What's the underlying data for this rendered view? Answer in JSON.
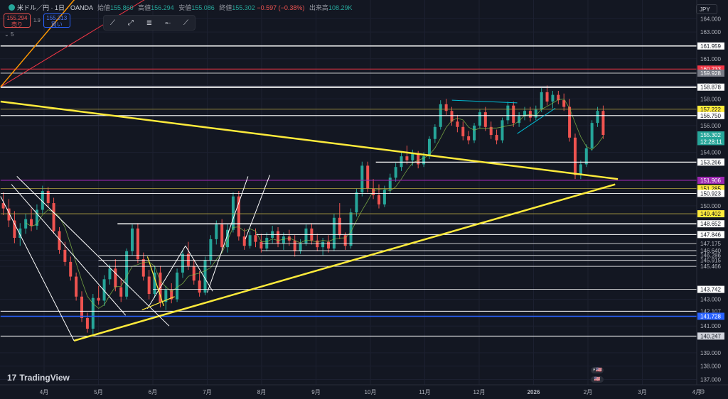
{
  "header": {
    "symbol": "米ドル／円 · 1日 · OANDA",
    "open_label": "始値",
    "open": "155.860",
    "high_label": "高値",
    "high": "156.294",
    "low_label": "安値",
    "low": "155.086",
    "close_label": "終値",
    "close": "155.302",
    "change": "−0.597 (−0.38%)",
    "volume_label": "出来高",
    "volume": "108.29K"
  },
  "trade": {
    "sell_price": "155.294",
    "sell_label": "売り",
    "spread": "1.9",
    "buy_price": "155.313",
    "buy_label": "買い"
  },
  "indicator_count": "5",
  "currency": "JPY",
  "brand": "TradingView",
  "chart_data": {
    "type": "candlestick",
    "ylim": [
      136.6,
      165.4
    ],
    "y_ticks": [
      "164.000",
      "163.000",
      "161.000",
      "159.000",
      "158.000",
      "156.000",
      "154.000",
      "150.000",
      "147.175",
      "146.640",
      "146.286",
      "145.915",
      "145.466",
      "143.000",
      "142.107",
      "141.000",
      "139.000",
      "138.000",
      "137.000"
    ],
    "x_ticks": [
      {
        "label": "4月",
        "month_index": 0
      },
      {
        "label": "5月",
        "month_index": 1
      },
      {
        "label": "6月",
        "month_index": 2
      },
      {
        "label": "7月",
        "month_index": 3
      },
      {
        "label": "8月",
        "month_index": 4
      },
      {
        "label": "9月",
        "month_index": 5
      },
      {
        "label": "10月",
        "month_index": 6
      },
      {
        "label": "11月",
        "month_index": 7
      },
      {
        "label": "12月",
        "month_index": 8
      },
      {
        "label": "2026",
        "month_index": 9
      },
      {
        "label": "2月",
        "month_index": 10
      },
      {
        "label": "3月",
        "month_index": 11
      },
      {
        "label": "4月",
        "month_index": 12
      }
    ],
    "price_labels": [
      {
        "value": "161.959",
        "price": 161.959,
        "bg": "#ffffff",
        "fg": "#131722"
      },
      {
        "value": "160.233",
        "price": 160.233,
        "bg": "#f23645",
        "fg": "#ffffff"
      },
      {
        "value": "159.928",
        "price": 159.928,
        "bg": "#787b86",
        "fg": "#ffffff"
      },
      {
        "value": "158.878",
        "price": 158.878,
        "bg": "#ffffff",
        "fg": "#131722"
      },
      {
        "value": "157.222",
        "price": 157.222,
        "bg": "#ffeb3b",
        "fg": "#131722"
      },
      {
        "value": "156.750",
        "price": 156.75,
        "bg": "#ffffff",
        "fg": "#131722"
      },
      {
        "value": "155.302",
        "price": 155.302,
        "bg": "#26a69a",
        "fg": "#ffffff"
      },
      {
        "value": "12:28:11",
        "price": 154.8,
        "bg": "#26a69a",
        "fg": "#ffffff"
      },
      {
        "value": "153.266",
        "price": 153.266,
        "bg": "#ffffff",
        "fg": "#131722"
      },
      {
        "value": "151.906",
        "price": 151.906,
        "bg": "#9c27b0",
        "fg": "#ffffff"
      },
      {
        "value": "151.285",
        "price": 151.285,
        "bg": "#ffeb3b",
        "fg": "#131722"
      },
      {
        "value": "150.923",
        "price": 150.923,
        "bg": "#ffffff",
        "fg": "#131722"
      },
      {
        "value": "149.402",
        "price": 149.402,
        "bg": "#ffeb3b",
        "fg": "#131722"
      },
      {
        "value": "148.652",
        "price": 148.652,
        "bg": "#ffffff",
        "fg": "#131722"
      },
      {
        "value": "147.846",
        "price": 147.846,
        "bg": "#ffffff",
        "fg": "#131722"
      },
      {
        "value": "143.742",
        "price": 143.742,
        "bg": "#ffffff",
        "fg": "#131722"
      },
      {
        "value": "141.728",
        "price": 141.728,
        "bg": "#2962ff",
        "fg": "#ffffff"
      },
      {
        "value": "140.247",
        "price": 140.247,
        "bg": "#d1d4dc",
        "fg": "#131722"
      }
    ],
    "h_lines": [
      {
        "price": 161.959,
        "from_month": -0.8,
        "color": "#ffffff",
        "width": 1.5
      },
      {
        "price": 160.233,
        "from_month": -0.8,
        "color": "#f23645",
        "width": 1
      },
      {
        "price": 159.928,
        "from_month": -0.8,
        "color": "#ffffff",
        "width": 0.8
      },
      {
        "price": 158.878,
        "from_month": -0.8,
        "color": "#ffffff",
        "width": 2
      },
      {
        "price": 157.222,
        "from_month": -0.8,
        "color": "#b5a642",
        "width": 0.8
      },
      {
        "price": 156.75,
        "from_month": -0.8,
        "color": "#ffffff",
        "width": 1.2
      },
      {
        "price": 153.266,
        "from_month": 6.1,
        "color": "#ffffff",
        "width": 1.2
      },
      {
        "price": 151.906,
        "from_month": -0.8,
        "color": "#9c27b0",
        "width": 1.2
      },
      {
        "price": 151.285,
        "from_month": -0.8,
        "color": "#b5a642",
        "width": 0.8
      },
      {
        "price": 150.923,
        "from_month": -0.8,
        "color": "#ffffff",
        "width": 0.8
      },
      {
        "price": 149.402,
        "from_month": -0.8,
        "color": "#b5a642",
        "width": 0.8
      },
      {
        "price": 148.652,
        "from_month": 1.35,
        "color": "#ffffff",
        "width": 1.5
      },
      {
        "price": 147.846,
        "from_month": 3.9,
        "color": "#ffffff",
        "width": 1
      },
      {
        "price": 147.175,
        "from_month": 4.0,
        "color": "#ffffff",
        "width": 0.8
      },
      {
        "price": 146.64,
        "from_month": 4.0,
        "color": "#ffffff",
        "width": 0.8
      },
      {
        "price": 146.286,
        "from_month": 1.0,
        "color": "#ffffff",
        "width": 0.8
      },
      {
        "price": 145.915,
        "from_month": 1.0,
        "color": "#ffffff",
        "width": 0.8
      },
      {
        "price": 145.466,
        "from_month": 1.0,
        "color": "#ffffff",
        "width": 0.8
      },
      {
        "price": 143.742,
        "from_month": 2.0,
        "color": "#ffffff",
        "width": 0.8
      },
      {
        "price": 142.107,
        "from_month": -0.8,
        "color": "#ffffff",
        "width": 1
      },
      {
        "price": 141.728,
        "from_month": -0.8,
        "color": "#2962ff",
        "width": 1.5
      },
      {
        "price": 140.247,
        "from_month": -0.8,
        "color": "#ffffff",
        "width": 1
      }
    ],
    "trend_lines": [
      {
        "x1": -0.8,
        "y1": 157.8,
        "x2": 10.55,
        "y2": 152.0,
        "color": "#ffeb3b",
        "width": 2.5
      },
      {
        "x1": 0.55,
        "y1": 139.9,
        "x2": 10.5,
        "y2": 151.6,
        "color": "#ffeb3b",
        "width": 2.5
      },
      {
        "x1": -0.8,
        "y1": 158.9,
        "x2": 3.3,
        "y2": 169.0,
        "color": "#f23645",
        "width": 1
      },
      {
        "x1": -0.8,
        "y1": 158.9,
        "x2": 1.3,
        "y2": 169.0,
        "color": "#ff9800",
        "width": 1.5
      },
      {
        "x1": -0.5,
        "y1": 152.2,
        "x2": 2.3,
        "y2": 141.0,
        "color": "#ffffff",
        "width": 1
      },
      {
        "x1": -0.6,
        "y1": 151.6,
        "x2": 1.5,
        "y2": 141.8,
        "color": "#ffffff",
        "width": 1
      },
      {
        "x1": -0.8,
        "y1": 150.7,
        "x2": 0.55,
        "y2": 139.9,
        "color": "#ffffff",
        "width": 1
      },
      {
        "x1": 1.9,
        "y1": 142.3,
        "x2": 2.6,
        "y2": 147.0,
        "color": "#ffffff",
        "width": 1
      },
      {
        "x1": 2.6,
        "y1": 147.0,
        "x2": 3.1,
        "y2": 143.6,
        "color": "#ffffff",
        "width": 1
      },
      {
        "x1": 3.0,
        "y1": 143.5,
        "x2": 3.75,
        "y2": 152.2,
        "color": "#ffffff",
        "width": 1
      },
      {
        "x1": 3.7,
        "y1": 147.5,
        "x2": 4.15,
        "y2": 152.3,
        "color": "#ffffff",
        "width": 1
      },
      {
        "x1": 1.8,
        "y1": 142.2,
        "x2": 2.4,
        "y2": 143.2,
        "color": "#ffeb3b",
        "width": 1.2
      },
      {
        "x1": 1.9,
        "y1": 146.2,
        "x2": 2.2,
        "y2": 142.5,
        "color": "#ffeb3b",
        "width": 1.2
      },
      {
        "x1": 7.5,
        "y1": 157.9,
        "x2": 8.7,
        "y2": 157.7,
        "color": "#00bcd4",
        "width": 1
      },
      {
        "x1": 8.7,
        "y1": 155.4,
        "x2": 9.4,
        "y2": 157.3,
        "color": "#00bcd4",
        "width": 1
      }
    ],
    "candles": [
      [
        150.2,
        151.0,
        149.3,
        149.8
      ],
      [
        149.8,
        150.5,
        148.4,
        148.9
      ],
      [
        148.9,
        149.6,
        147.2,
        147.6
      ],
      [
        147.6,
        148.7,
        147.0,
        148.3
      ],
      [
        148.3,
        149.4,
        147.9,
        149.0
      ],
      [
        149.0,
        149.8,
        148.1,
        148.5
      ],
      [
        148.5,
        150.1,
        148.2,
        149.7
      ],
      [
        149.7,
        151.5,
        149.4,
        151.1
      ],
      [
        151.1,
        151.4,
        149.9,
        150.2
      ],
      [
        150.2,
        150.6,
        147.9,
        148.1
      ],
      [
        148.1,
        148.4,
        146.4,
        146.7
      ],
      [
        146.7,
        147.3,
        145.5,
        145.8
      ],
      [
        145.8,
        146.2,
        144.4,
        144.7
      ],
      [
        144.7,
        145.0,
        142.9,
        143.2
      ],
      [
        143.2,
        143.6,
        141.3,
        141.6
      ],
      [
        141.6,
        142.0,
        140.5,
        140.8
      ],
      [
        140.8,
        143.4,
        140.4,
        143.1
      ],
      [
        143.1,
        144.0,
        142.6,
        142.9
      ],
      [
        142.9,
        144.8,
        142.5,
        144.5
      ],
      [
        144.5,
        145.6,
        144.1,
        145.3
      ],
      [
        145.3,
        146.0,
        143.6,
        143.9
      ],
      [
        143.9,
        144.6,
        142.8,
        143.2
      ],
      [
        143.2,
        146.8,
        143.0,
        146.6
      ],
      [
        146.6,
        148.6,
        146.3,
        148.3
      ],
      [
        148.3,
        148.7,
        145.7,
        146.0
      ],
      [
        146.0,
        146.5,
        144.4,
        144.7
      ],
      [
        144.7,
        145.2,
        143.0,
        143.4
      ],
      [
        143.4,
        145.5,
        143.1,
        145.0
      ],
      [
        145.0,
        145.5,
        142.4,
        142.8
      ],
      [
        142.8,
        144.0,
        142.2,
        143.7
      ],
      [
        143.7,
        144.2,
        142.7,
        143.0
      ],
      [
        143.0,
        145.3,
        142.8,
        145.0
      ],
      [
        145.0,
        146.7,
        144.6,
        146.4
      ],
      [
        146.4,
        147.3,
        145.2,
        145.5
      ],
      [
        145.5,
        146.0,
        144.1,
        144.4
      ],
      [
        144.4,
        145.1,
        143.2,
        143.5
      ],
      [
        143.5,
        146.2,
        143.3,
        145.9
      ],
      [
        145.9,
        147.8,
        145.6,
        147.5
      ],
      [
        147.5,
        148.9,
        147.1,
        148.6
      ],
      [
        148.6,
        149.0,
        146.6,
        146.9
      ],
      [
        146.9,
        148.6,
        146.5,
        148.2
      ],
      [
        148.2,
        151.0,
        148.0,
        150.7
      ],
      [
        150.7,
        151.1,
        147.4,
        147.7
      ],
      [
        147.7,
        148.3,
        146.7,
        147.0
      ],
      [
        147.0,
        148.1,
        146.8,
        147.8
      ],
      [
        147.8,
        148.3,
        146.9,
        147.3
      ],
      [
        147.3,
        147.9,
        146.5,
        146.8
      ],
      [
        146.8,
        148.0,
        146.6,
        147.6
      ],
      [
        147.6,
        148.5,
        147.2,
        148.1
      ],
      [
        148.1,
        148.4,
        146.9,
        147.2
      ],
      [
        147.2,
        148.0,
        146.7,
        147.7
      ],
      [
        147.7,
        148.2,
        147.0,
        147.4
      ],
      [
        147.4,
        147.8,
        146.2,
        146.6
      ],
      [
        146.6,
        147.5,
        146.4,
        147.2
      ],
      [
        147.2,
        148.6,
        147.0,
        148.3
      ],
      [
        148.3,
        148.7,
        147.1,
        147.4
      ],
      [
        147.4,
        147.9,
        146.6,
        146.9
      ],
      [
        146.9,
        147.6,
        146.3,
        147.3
      ],
      [
        147.3,
        147.8,
        146.5,
        146.8
      ],
      [
        146.8,
        149.4,
        146.6,
        149.1
      ],
      [
        149.1,
        150.2,
        147.5,
        147.8
      ],
      [
        147.8,
        148.0,
        146.7,
        147.0
      ],
      [
        147.0,
        149.8,
        146.8,
        149.5
      ],
      [
        149.5,
        151.3,
        149.2,
        151.0
      ],
      [
        151.0,
        153.3,
        150.7,
        153.0
      ],
      [
        153.0,
        153.3,
        151.0,
        151.3
      ],
      [
        151.3,
        152.0,
        150.5,
        150.8
      ],
      [
        150.8,
        151.6,
        149.8,
        150.1
      ],
      [
        150.1,
        151.5,
        149.9,
        151.2
      ],
      [
        151.2,
        152.4,
        150.9,
        152.1
      ],
      [
        152.1,
        153.2,
        151.8,
        152.9
      ],
      [
        152.9,
        154.0,
        152.6,
        153.7
      ],
      [
        153.7,
        154.5,
        153.1,
        153.4
      ],
      [
        153.4,
        154.2,
        153.0,
        153.9
      ],
      [
        153.9,
        154.1,
        152.8,
        153.1
      ],
      [
        153.1,
        154.0,
        152.9,
        153.7
      ],
      [
        153.7,
        155.2,
        153.5,
        155.0
      ],
      [
        155.0,
        156.1,
        154.7,
        155.9
      ],
      [
        155.9,
        157.9,
        155.7,
        157.6
      ],
      [
        157.6,
        158.0,
        156.8,
        157.1
      ],
      [
        157.1,
        157.4,
        156.0,
        156.3
      ],
      [
        156.3,
        156.8,
        155.5,
        155.9
      ],
      [
        155.9,
        156.3,
        154.9,
        155.2
      ],
      [
        155.2,
        155.6,
        154.6,
        154.9
      ],
      [
        154.9,
        156.2,
        154.7,
        156.0
      ],
      [
        156.0,
        157.2,
        155.8,
        157.0
      ],
      [
        157.0,
        157.4,
        155.6,
        155.9
      ],
      [
        155.9,
        156.3,
        155.0,
        155.3
      ],
      [
        155.3,
        155.7,
        154.6,
        154.9
      ],
      [
        154.9,
        156.6,
        154.7,
        156.4
      ],
      [
        156.4,
        157.8,
        156.1,
        157.5
      ],
      [
        157.5,
        157.8,
        155.9,
        156.2
      ],
      [
        156.2,
        157.0,
        155.9,
        156.7
      ],
      [
        156.7,
        157.4,
        156.4,
        157.1
      ],
      [
        157.1,
        157.4,
        156.3,
        156.6
      ],
      [
        156.6,
        157.5,
        156.4,
        157.2
      ],
      [
        157.2,
        158.8,
        157.0,
        158.5
      ],
      [
        158.5,
        159.0,
        157.5,
        157.8
      ],
      [
        157.8,
        158.6,
        157.3,
        158.3
      ],
      [
        158.3,
        158.6,
        157.6,
        157.9
      ],
      [
        157.9,
        158.4,
        157.1,
        157.4
      ],
      [
        157.4,
        158.0,
        154.8,
        155.1
      ],
      [
        155.1,
        155.4,
        152.0,
        152.3
      ],
      [
        152.3,
        153.4,
        152.0,
        153.1
      ],
      [
        153.1,
        154.6,
        152.9,
        154.3
      ],
      [
        154.3,
        156.4,
        154.1,
        156.2
      ],
      [
        156.2,
        157.4,
        155.9,
        157.1
      ],
      [
        157.1,
        157.5,
        155.0,
        155.3
      ]
    ]
  }
}
